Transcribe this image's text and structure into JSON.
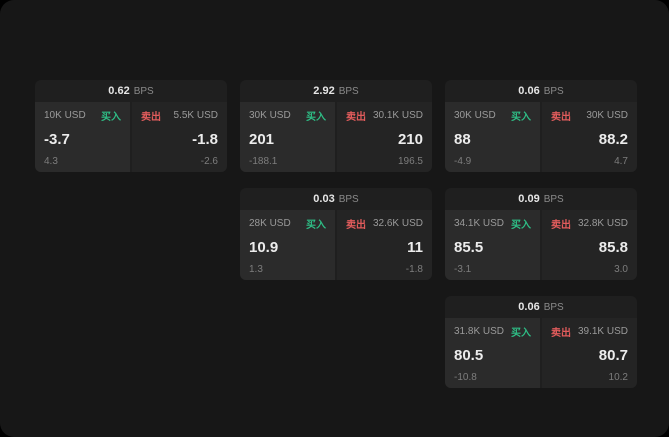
{
  "colors": {
    "buy": "#2ebd85",
    "sell": "#e25c5c",
    "background": "#171717",
    "card": "#1f1f1f",
    "panel_buy": "#2b2b2b",
    "panel_sell": "#242424"
  },
  "cards": [
    {
      "bps": "0.62",
      "bps_label": "BPS",
      "buy": {
        "size": "10K USD",
        "side": "买入",
        "price": "-3.7",
        "sub": "4.3"
      },
      "sell": {
        "side": "卖出",
        "size": "5.5K USD",
        "price": "-1.8",
        "sub": "-2.6"
      }
    },
    {
      "bps": "2.92",
      "bps_label": "BPS",
      "buy": {
        "size": "30K USD",
        "side": "买入",
        "price": "201",
        "sub": "-188.1"
      },
      "sell": {
        "side": "卖出",
        "size": "30.1K USD",
        "price": "210",
        "sub": "196.5"
      }
    },
    {
      "bps": "0.06",
      "bps_label": "BPS",
      "buy": {
        "size": "30K USD",
        "side": "买入",
        "price": "88",
        "sub": "-4.9"
      },
      "sell": {
        "side": "卖出",
        "size": "30K USD",
        "price": "88.2",
        "sub": "4.7"
      }
    },
    {
      "bps": "0.03",
      "bps_label": "BPS",
      "buy": {
        "size": "28K USD",
        "side": "买入",
        "price": "10.9",
        "sub": "1.3"
      },
      "sell": {
        "side": "卖出",
        "size": "32.6K USD",
        "price": "11",
        "sub": "-1.8"
      }
    },
    {
      "bps": "0.09",
      "bps_label": "BPS",
      "buy": {
        "size": "34.1K USD",
        "side": "买入",
        "price": "85.5",
        "sub": "-3.1"
      },
      "sell": {
        "side": "卖出",
        "size": "32.8K USD",
        "price": "85.8",
        "sub": "3.0"
      }
    },
    {
      "bps": "0.06",
      "bps_label": "BPS",
      "buy": {
        "size": "31.8K USD",
        "side": "买入",
        "price": "80.5",
        "sub": "-10.8"
      },
      "sell": {
        "side": "卖出",
        "size": "39.1K USD",
        "price": "80.7",
        "sub": "10.2"
      }
    }
  ]
}
